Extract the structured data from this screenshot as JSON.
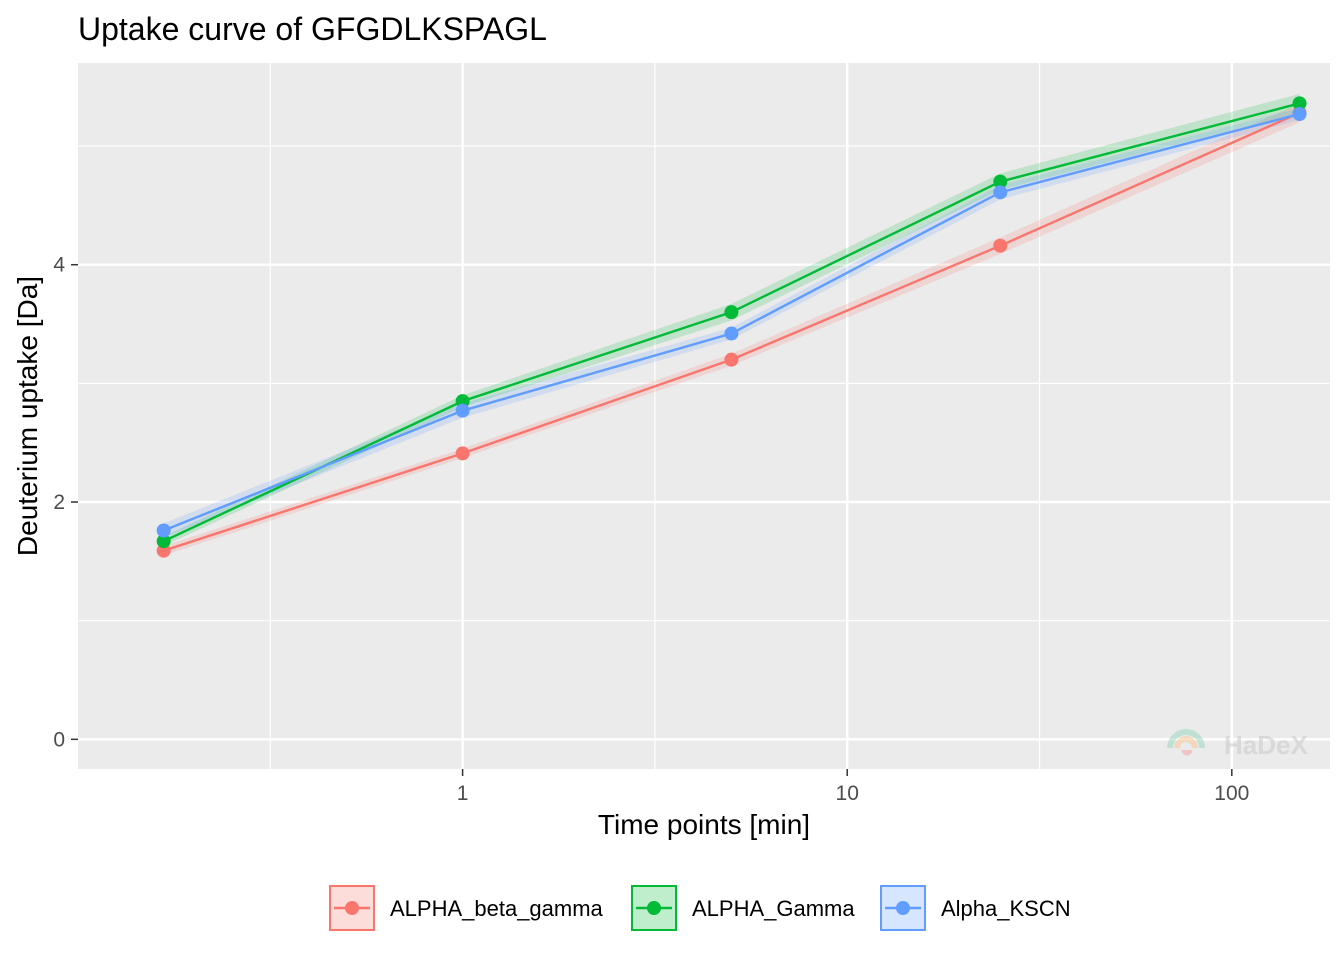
{
  "chart_data": {
    "type": "line",
    "title": "Uptake curve of GFGDLKSPAGL",
    "xlabel": "Time points [min]",
    "ylabel": "Deuterium uptake [Da]",
    "x_scale": "log10",
    "xlim": [
      0.1,
      180
    ],
    "ylim": [
      -0.25,
      5.7
    ],
    "x_ticks": [
      1,
      10,
      100
    ],
    "x_tick_labels": [
      "1",
      "10",
      "100"
    ],
    "y_ticks": [
      0,
      2,
      4
    ],
    "y_tick_labels": [
      "0",
      "2",
      "4"
    ],
    "grid": true,
    "legend_position": "bottom",
    "series": [
      {
        "name": "ALPHA_beta_gamma",
        "color": "#F8766D",
        "x": [
          0.167,
          1,
          5,
          25,
          150
        ],
        "y": [
          1.59,
          2.41,
          3.2,
          4.16,
          5.28
        ],
        "err": [
          0.04,
          0.04,
          0.05,
          0.07,
          0.08
        ]
      },
      {
        "name": "ALPHA_Gamma",
        "color": "#00BA38",
        "x": [
          0.167,
          1,
          5,
          25,
          150
        ],
        "y": [
          1.67,
          2.85,
          3.6,
          4.7,
          5.36
        ],
        "err": [
          0.04,
          0.05,
          0.07,
          0.07,
          0.08
        ]
      },
      {
        "name": "Alpha_KSCN",
        "color": "#619CFF",
        "x": [
          0.167,
          1,
          5,
          25,
          150
        ],
        "y": [
          1.76,
          2.77,
          3.42,
          4.61,
          5.27
        ],
        "err": [
          0.06,
          0.06,
          0.05,
          0.06,
          0.05
        ]
      }
    ]
  },
  "watermark": {
    "text": "HaDeX"
  }
}
